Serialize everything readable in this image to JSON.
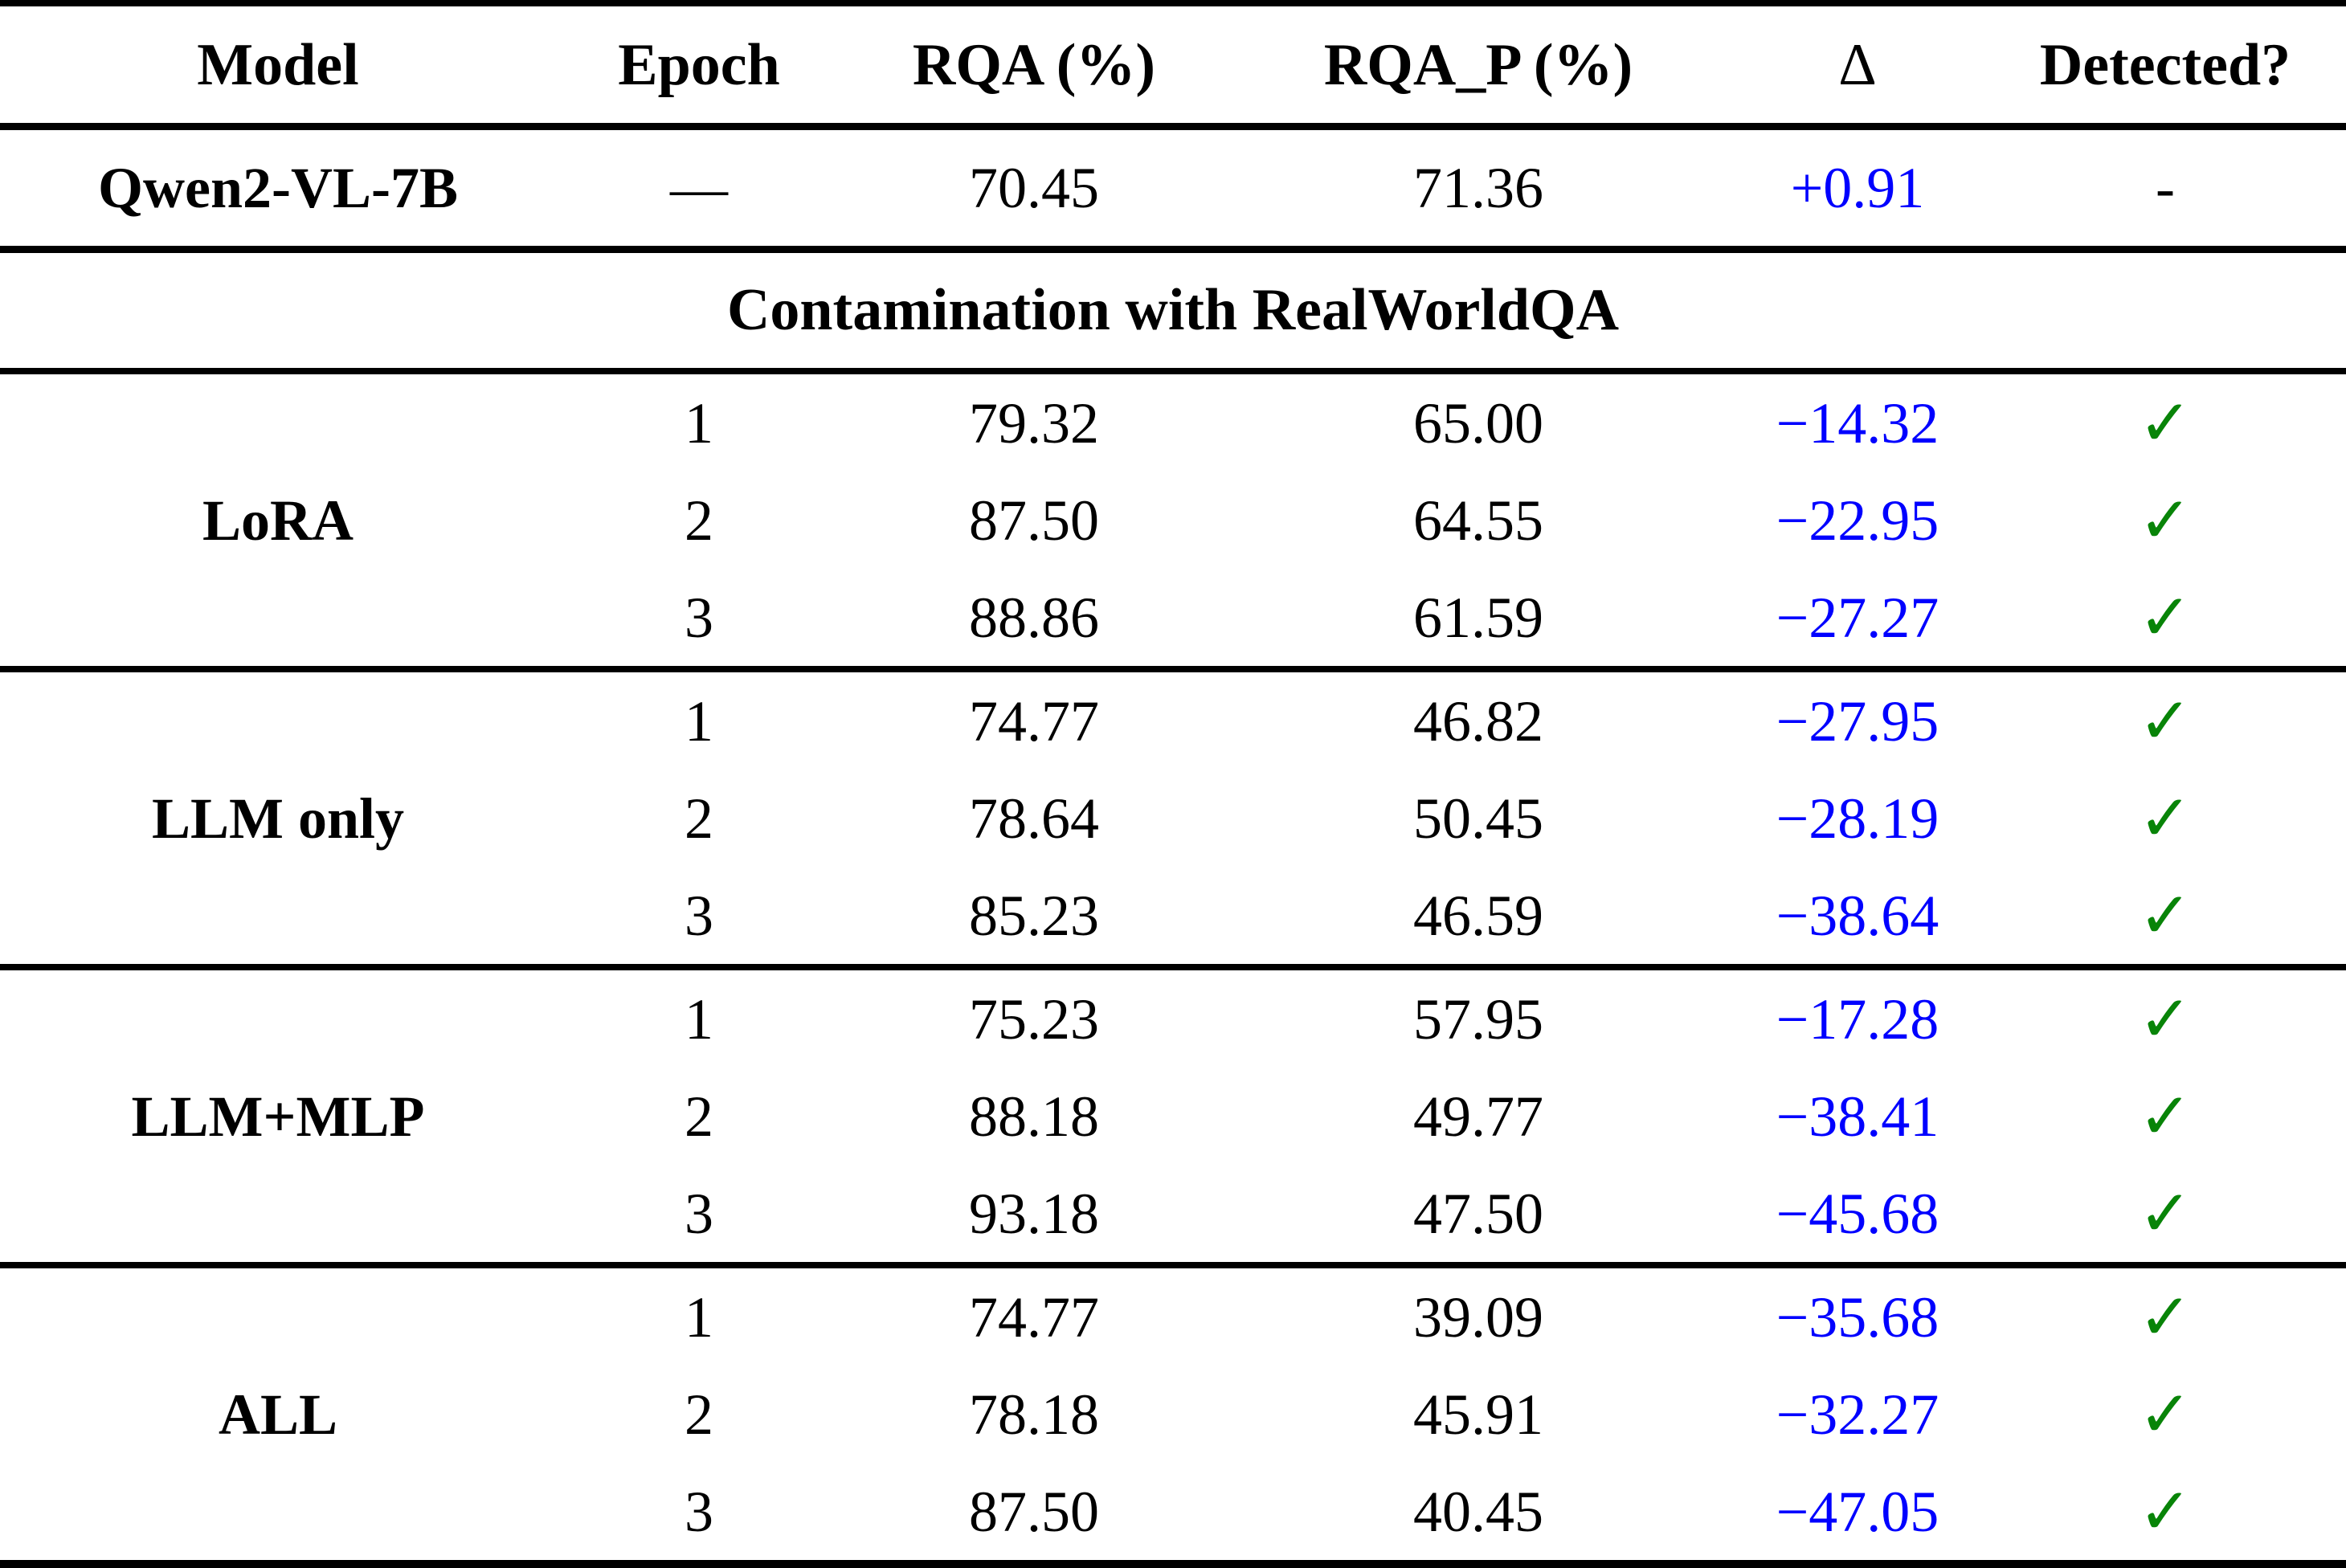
{
  "table": {
    "columns": [
      {
        "label": "Model"
      },
      {
        "label": "Epoch"
      },
      {
        "label": "RQA (%)"
      },
      {
        "label": "RQA_P (%)"
      },
      {
        "label": "Δ"
      },
      {
        "label": "Detected?"
      }
    ],
    "baseline_row": {
      "model": "Qwen2-VL-7B",
      "epoch": "—",
      "rqa": "70.45",
      "rqa_p": "71.36",
      "delta": "+0.91",
      "detected": "-"
    },
    "section_header": "Contamination with RealWorldQA",
    "groups": [
      {
        "model": "LoRA",
        "rows": [
          {
            "epoch": "1",
            "rqa": "79.32",
            "rqa_p": "65.00",
            "delta": "−14.32",
            "detected": "✓"
          },
          {
            "epoch": "2",
            "rqa": "87.50",
            "rqa_p": "64.55",
            "delta": "−22.95",
            "detected": "✓"
          },
          {
            "epoch": "3",
            "rqa": "88.86",
            "rqa_p": "61.59",
            "delta": "−27.27",
            "detected": "✓"
          }
        ]
      },
      {
        "model": "LLM only",
        "rows": [
          {
            "epoch": "1",
            "rqa": "74.77",
            "rqa_p": "46.82",
            "delta": "−27.95",
            "detected": "✓"
          },
          {
            "epoch": "2",
            "rqa": "78.64",
            "rqa_p": "50.45",
            "delta": "−28.19",
            "detected": "✓"
          },
          {
            "epoch": "3",
            "rqa": "85.23",
            "rqa_p": "46.59",
            "delta": "−38.64",
            "detected": "✓"
          }
        ]
      },
      {
        "model": "LLM+MLP",
        "rows": [
          {
            "epoch": "1",
            "rqa": "75.23",
            "rqa_p": "57.95",
            "delta": "−17.28",
            "detected": "✓"
          },
          {
            "epoch": "2",
            "rqa": "88.18",
            "rqa_p": "49.77",
            "delta": "−38.41",
            "detected": "✓"
          },
          {
            "epoch": "3",
            "rqa": "93.18",
            "rqa_p": "47.50",
            "delta": "−45.68",
            "detected": "✓"
          }
        ]
      },
      {
        "model": "ALL",
        "rows": [
          {
            "epoch": "1",
            "rqa": "74.77",
            "rqa_p": "39.09",
            "delta": "−35.68",
            "detected": "✓"
          },
          {
            "epoch": "2",
            "rqa": "78.18",
            "rqa_p": "45.91",
            "delta": "−32.27",
            "detected": "✓"
          },
          {
            "epoch": "3",
            "rqa": "87.50",
            "rqa_p": "40.45",
            "delta": "−47.05",
            "detected": "✓"
          }
        ]
      }
    ],
    "colors": {
      "delta_text": "#0000ff",
      "detected_check": "#088408",
      "text": "#000000",
      "rule": "#000000"
    }
  }
}
